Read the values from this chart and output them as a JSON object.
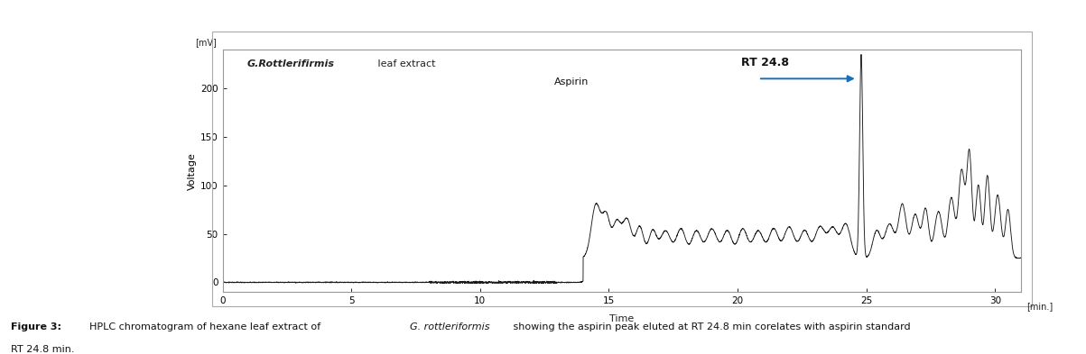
{
  "title_italic": "G.Rottlerifirmis",
  "title_rest": " leaf extract",
  "rt_label": "RT 24.8",
  "aspirin_label": "Aspirin",
  "ylabel": "Voltage",
  "xlabel": "Time",
  "xlabel_unit": "[min.]",
  "ylabel_unit": "[mV]",
  "xlim": [
    0,
    31
  ],
  "ylim": [
    -10,
    240
  ],
  "yticks": [
    0,
    50,
    100,
    150,
    200
  ],
  "xticks": [
    0,
    5,
    10,
    15,
    20,
    25,
    30
  ],
  "line_color": "#1a1a1a",
  "arrow_color": "#1a6eb5",
  "bg_color": "#ffffff",
  "fig_bg": "#ffffff",
  "plot_border": "#999999"
}
